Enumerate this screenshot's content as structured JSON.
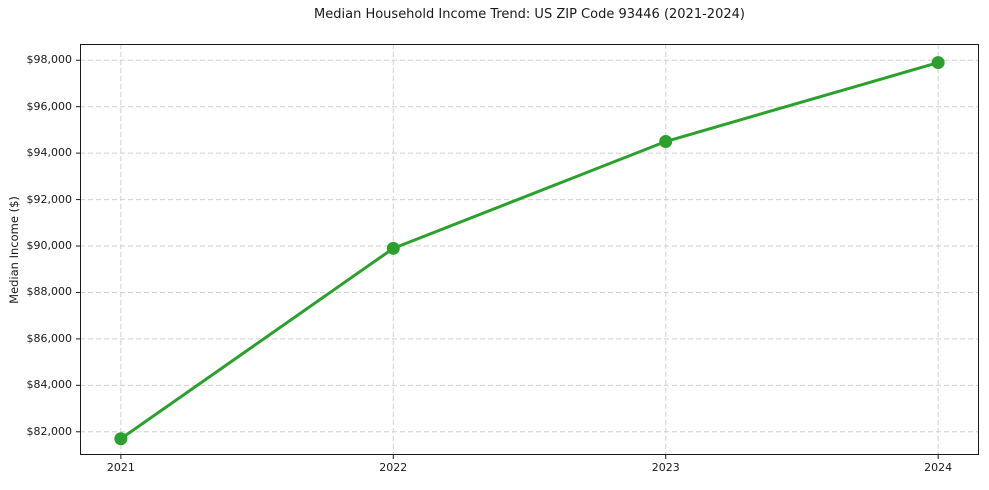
{
  "chart_data": {
    "type": "line",
    "title": "Median Household Income Trend: US ZIP Code 93446 (2021-2024)",
    "xlabel": "",
    "ylabel": "Median Income ($)",
    "x": [
      2021,
      2022,
      2023,
      2024
    ],
    "xtick_labels": [
      "2021",
      "2022",
      "2023",
      "2024"
    ],
    "series": [
      {
        "name": "Median Household Income",
        "values": [
          81700,
          89900,
          94500,
          97900
        ]
      }
    ],
    "yticks": [
      82000,
      84000,
      86000,
      88000,
      90000,
      92000,
      94000,
      96000,
      98000
    ],
    "ytick_labels": [
      "$82,000",
      "$84,000",
      "$86,000",
      "$88,000",
      "$90,000",
      "$92,000",
      "$94,000",
      "$96,000",
      "$98,000"
    ],
    "xlim": [
      2020.85,
      2024.15
    ],
    "ylim": [
      81000,
      98700
    ],
    "grid": true,
    "grid_style": "dashed",
    "legend_position": "none",
    "line_color": "#2ca02c",
    "marker": "circle",
    "marker_size": 6.5,
    "line_width": 3,
    "grid_color": "#d0d0d0",
    "axis_color": "#1a1a1a",
    "text_color": "#1a1a1a",
    "background_color": "#ffffff"
  }
}
